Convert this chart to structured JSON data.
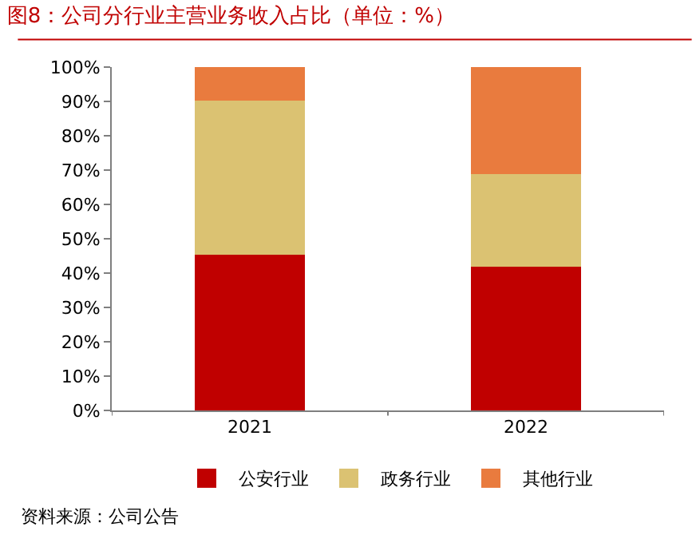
{
  "chart_data": {
    "type": "bar",
    "stacked": true,
    "title": "图8：公司分行业主营业务收入占比（单位：%）",
    "categories": [
      "2021",
      "2022"
    ],
    "series": [
      {
        "name": "公安行业",
        "color": "#c00000",
        "values": [
          45.3,
          41.9
        ]
      },
      {
        "name": "政务行业",
        "color": "#dbc272",
        "values": [
          44.9,
          26.9
        ]
      },
      {
        "name": "其他行业",
        "color": "#e97b3e",
        "values": [
          9.8,
          31.2
        ]
      }
    ],
    "ylim": [
      0,
      100
    ],
    "yticks": [
      {
        "value": 0,
        "label": "0%"
      },
      {
        "value": 10,
        "label": "10%"
      },
      {
        "value": 20,
        "label": "20%"
      },
      {
        "value": 30,
        "label": "30%"
      },
      {
        "value": 40,
        "label": "40%"
      },
      {
        "value": 50,
        "label": "50%"
      },
      {
        "value": 60,
        "label": "60%"
      },
      {
        "value": 70,
        "label": "70%"
      },
      {
        "value": 80,
        "label": "80%"
      },
      {
        "value": 90,
        "label": "90%"
      },
      {
        "value": 100,
        "label": "100%"
      }
    ],
    "grid": false,
    "legend": "bottom",
    "annotations": [
      "资料来源：公司公告"
    ]
  }
}
